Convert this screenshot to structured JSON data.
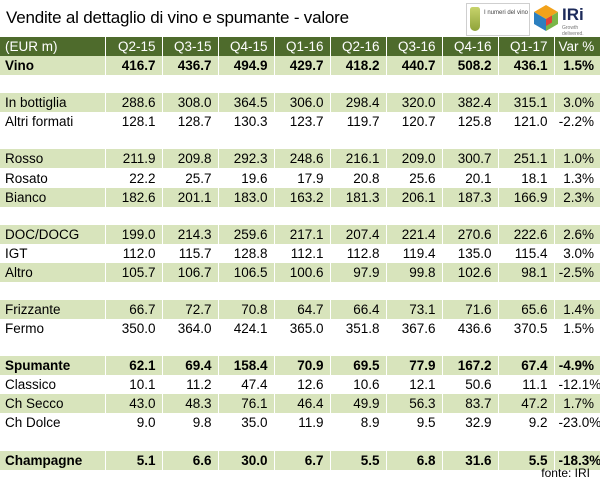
{
  "title": "Vendite al dettaglio di vino e spumante - valore",
  "logos": {
    "observatory_text": "I numeri del vino",
    "iri_text": "IRi",
    "iri_sub": "Growth delivered."
  },
  "table": {
    "columns": [
      "(EUR m)",
      "Q2-15",
      "Q3-15",
      "Q4-15",
      "Q1-16",
      "Q2-16",
      "Q3-16",
      "Q4-16",
      "Q1-17",
      "Var %"
    ],
    "rows": [
      {
        "cells": [
          "Vino",
          "416.7",
          "436.7",
          "494.9",
          "429.7",
          "418.2",
          "440.7",
          "508.2",
          "436.1",
          "1.5%"
        ],
        "style": "green bold"
      },
      {
        "cells": [
          "",
          "",
          "",
          "",
          "",
          "",
          "",
          "",
          "",
          ""
        ],
        "style": "spacer"
      },
      {
        "cells": [
          "In bottiglia",
          "288.6",
          "308.0",
          "364.5",
          "306.0",
          "298.4",
          "320.0",
          "382.4",
          "315.1",
          "3.0%"
        ],
        "style": "green"
      },
      {
        "cells": [
          "Altri formati",
          "128.1",
          "128.7",
          "130.3",
          "123.7",
          "119.7",
          "120.7",
          "125.8",
          "121.0",
          "-2.2%"
        ],
        "style": "white"
      },
      {
        "cells": [
          "",
          "",
          "",
          "",
          "",
          "",
          "",
          "",
          "",
          ""
        ],
        "style": "spacer"
      },
      {
        "cells": [
          "Rosso",
          "211.9",
          "209.8",
          "292.3",
          "248.6",
          "216.1",
          "209.0",
          "300.7",
          "251.1",
          "1.0%"
        ],
        "style": "green"
      },
      {
        "cells": [
          "Rosato",
          "22.2",
          "25.7",
          "19.6",
          "17.9",
          "20.8",
          "25.6",
          "20.1",
          "18.1",
          "1.3%"
        ],
        "style": "white"
      },
      {
        "cells": [
          "Bianco",
          "182.6",
          "201.1",
          "183.0",
          "163.2",
          "181.3",
          "206.1",
          "187.3",
          "166.9",
          "2.3%"
        ],
        "style": "green"
      },
      {
        "cells": [
          "",
          "",
          "",
          "",
          "",
          "",
          "",
          "",
          "",
          ""
        ],
        "style": "spacer"
      },
      {
        "cells": [
          "DOC/DOCG",
          "199.0",
          "214.3",
          "259.6",
          "217.1",
          "207.4",
          "221.4",
          "270.6",
          "222.6",
          "2.6%"
        ],
        "style": "green"
      },
      {
        "cells": [
          "IGT",
          "112.0",
          "115.7",
          "128.8",
          "112.1",
          "112.8",
          "119.4",
          "135.0",
          "115.4",
          "3.0%"
        ],
        "style": "white"
      },
      {
        "cells": [
          "Altro",
          "105.7",
          "106.7",
          "106.5",
          "100.6",
          "97.9",
          "99.8",
          "102.6",
          "98.1",
          "-2.5%"
        ],
        "style": "green"
      },
      {
        "cells": [
          "",
          "",
          "",
          "",
          "",
          "",
          "",
          "",
          "",
          ""
        ],
        "style": "spacer"
      },
      {
        "cells": [
          "Frizzante",
          "66.7",
          "72.7",
          "70.8",
          "64.7",
          "66.4",
          "73.1",
          "71.6",
          "65.6",
          "1.4%"
        ],
        "style": "green"
      },
      {
        "cells": [
          "Fermo",
          "350.0",
          "364.0",
          "424.1",
          "365.0",
          "351.8",
          "367.6",
          "436.6",
          "370.5",
          "1.5%"
        ],
        "style": "white"
      },
      {
        "cells": [
          "",
          "",
          "",
          "",
          "",
          "",
          "",
          "",
          "",
          ""
        ],
        "style": "spacer"
      },
      {
        "cells": [
          "Spumante",
          "62.1",
          "69.4",
          "158.4",
          "70.9",
          "69.5",
          "77.9",
          "167.2",
          "67.4",
          "-4.9%"
        ],
        "style": "green bold"
      },
      {
        "cells": [
          "Classico",
          "10.1",
          "11.2",
          "47.4",
          "12.6",
          "10.6",
          "12.1",
          "50.6",
          "11.1",
          "-12.1%"
        ],
        "style": "white"
      },
      {
        "cells": [
          "Ch Secco",
          "43.0",
          "48.3",
          "76.1",
          "46.4",
          "49.9",
          "56.3",
          "83.7",
          "47.2",
          "1.7%"
        ],
        "style": "green"
      },
      {
        "cells": [
          "Ch Dolce",
          "9.0",
          "9.8",
          "35.0",
          "11.9",
          "8.9",
          "9.5",
          "32.9",
          "9.2",
          "-23.0%"
        ],
        "style": "white"
      },
      {
        "cells": [
          "",
          "",
          "",
          "",
          "",
          "",
          "",
          "",
          "",
          ""
        ],
        "style": "spacer"
      },
      {
        "cells": [
          "Champagne",
          "5.1",
          "6.6",
          "30.0",
          "6.7",
          "5.5",
          "6.8",
          "31.6",
          "5.5",
          "-18.3%"
        ],
        "style": "green bold"
      }
    ]
  },
  "source": "fonte: IRI"
}
